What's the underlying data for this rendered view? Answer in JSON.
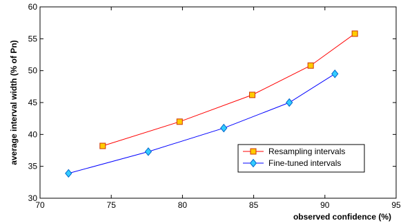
{
  "chart_data": {
    "type": "line",
    "title": "",
    "xlabel": "observed confidence (%)",
    "ylabel": "average interval width (% of Pn)",
    "xlim": [
      70,
      95
    ],
    "ylim": [
      30,
      60
    ],
    "xticks": [
      70,
      75,
      80,
      85,
      90,
      95
    ],
    "yticks": [
      30,
      35,
      40,
      45,
      50,
      55,
      60
    ],
    "grid": false,
    "legend_position": "bottom-right",
    "series": [
      {
        "name": "Resampling intervals",
        "line_color": "#ff0000",
        "marker": "square",
        "marker_fill": "#ffcc00",
        "marker_edge": "#cc3300",
        "x": [
          74.4,
          79.8,
          84.9,
          89.0,
          92.1
        ],
        "y": [
          38.2,
          42.0,
          46.2,
          50.8,
          55.8
        ]
      },
      {
        "name": "Fine-tuned intervals",
        "line_color": "#0000ff",
        "marker": "diamond",
        "marker_fill": "#33ccff",
        "marker_edge": "#0066cc",
        "x": [
          72.0,
          77.6,
          82.9,
          87.5,
          90.7
        ],
        "y": [
          33.9,
          37.3,
          41.0,
          45.0,
          49.5
        ]
      }
    ]
  }
}
